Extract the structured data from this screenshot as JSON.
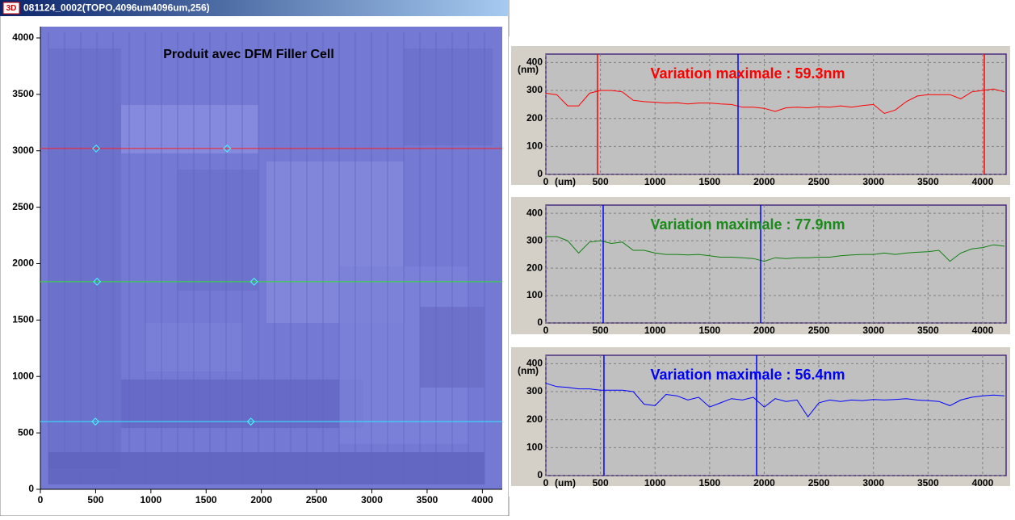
{
  "window_icon": "3D",
  "window_title": "081124_0002(TOPO,4096um4096um,256)",
  "chart_data": [
    {
      "type": "image",
      "title": "Produit avec DFM Filler Cell",
      "xlim": [
        0,
        4180
      ],
      "ylim": [
        0,
        4100
      ],
      "xticks": [
        0,
        500,
        1000,
        1500,
        2000,
        2500,
        3000,
        3500,
        4000
      ],
      "yticks": [
        0,
        500,
        1000,
        1500,
        2000,
        2500,
        3000,
        3500,
        4000
      ],
      "cuts": [
        {
          "color": "#ff2020",
          "value": 3020,
          "markers": [
            505,
            1690
          ]
        },
        {
          "color": "#30e030",
          "value": 1840,
          "markers": [
            513,
            1934
          ]
        },
        {
          "color": "#30e8ff",
          "value": 600,
          "markers": [
            498,
            1905
          ]
        }
      ]
    },
    {
      "type": "line",
      "annotation": "Variation maximale : 59.3nm",
      "annotation_color": "#ff0000",
      "y_unit": "(nm)",
      "x_unit": "(um)",
      "grid": true,
      "xlim": [
        0,
        4215
      ],
      "ylim": [
        0,
        430
      ],
      "xticks": [
        0,
        500,
        1000,
        1500,
        2000,
        2500,
        3000,
        3500,
        4000
      ],
      "yticks": [
        0,
        100,
        200,
        300,
        400
      ],
      "cursors": [
        {
          "value": 473,
          "color": "#ff0000"
        },
        {
          "value": 1760,
          "color": "#0000ff"
        },
        {
          "value": 4015,
          "color": "#ff0000"
        }
      ],
      "series": [
        {
          "color": "#ff0000",
          "x": [
            0,
            100,
            200,
            300,
            400,
            500,
            600,
            700,
            800,
            900,
            1000,
            1100,
            1200,
            1300,
            1400,
            1500,
            1600,
            1700,
            1800,
            1900,
            2000,
            2100,
            2200,
            2300,
            2400,
            2500,
            2600,
            2700,
            2800,
            2900,
            3000,
            3100,
            3200,
            3300,
            3400,
            3500,
            3600,
            3700,
            3800,
            3900,
            4000,
            4100,
            4200
          ],
          "values": [
            290,
            285,
            245,
            245,
            290,
            300,
            300,
            295,
            265,
            260,
            258,
            255,
            256,
            252,
            255,
            255,
            252,
            250,
            240,
            240,
            236,
            225,
            238,
            240,
            238,
            242,
            240,
            245,
            240,
            246,
            250,
            218,
            230,
            260,
            280,
            285,
            285,
            285,
            270,
            295,
            300,
            305,
            295
          ]
        }
      ]
    },
    {
      "type": "line",
      "annotation": "Variation maximale : 77.9nm",
      "annotation_color": "#1a8a1a",
      "grid": true,
      "xlim": [
        0,
        4215
      ],
      "ylim": [
        0,
        430
      ],
      "xticks": [
        0,
        500,
        1000,
        1500,
        2000,
        2500,
        3000,
        3500,
        4000
      ],
      "yticks": [
        0,
        100,
        200,
        300,
        400
      ],
      "cursors": [
        {
          "value": 525,
          "color": "#0000ff"
        },
        {
          "value": 1967,
          "color": "#0000ff"
        }
      ],
      "series": [
        {
          "color": "#108010",
          "x": [
            0,
            100,
            200,
            300,
            400,
            500,
            600,
            700,
            800,
            900,
            1000,
            1100,
            1200,
            1300,
            1400,
            1500,
            1600,
            1700,
            1800,
            1900,
            2000,
            2100,
            2200,
            2300,
            2400,
            2500,
            2600,
            2700,
            2800,
            2900,
            3000,
            3100,
            3200,
            3300,
            3400,
            3500,
            3600,
            3700,
            3800,
            3900,
            4000,
            4100,
            4200
          ],
          "values": [
            315,
            315,
            300,
            255,
            295,
            300,
            290,
            295,
            265,
            265,
            255,
            250,
            250,
            248,
            250,
            245,
            240,
            240,
            238,
            235,
            225,
            238,
            235,
            238,
            238,
            240,
            240,
            245,
            248,
            250,
            250,
            255,
            250,
            255,
            258,
            260,
            265,
            225,
            255,
            270,
            275,
            285,
            280
          ]
        }
      ]
    },
    {
      "type": "line",
      "annotation": "Variation maximale : 56.4nm",
      "annotation_color": "#0000ff",
      "y_unit": "(nm)",
      "x_unit": "(um)",
      "grid": true,
      "xlim": [
        0,
        4215
      ],
      "ylim": [
        0,
        430
      ],
      "xticks": [
        0,
        500,
        1000,
        1500,
        2000,
        2500,
        3000,
        3500,
        4000
      ],
      "yticks": [
        0,
        100,
        200,
        300,
        400
      ],
      "cursors": [
        {
          "value": 532,
          "color": "#0000ff"
        },
        {
          "value": 1930,
          "color": "#0000ff"
        }
      ],
      "series": [
        {
          "color": "#0000ff",
          "x": [
            0,
            100,
            200,
            300,
            400,
            500,
            600,
            700,
            800,
            900,
            1000,
            1100,
            1200,
            1300,
            1400,
            1500,
            1600,
            1700,
            1800,
            1900,
            2000,
            2100,
            2200,
            2300,
            2400,
            2500,
            2600,
            2700,
            2800,
            2900,
            3000,
            3100,
            3200,
            3300,
            3400,
            3500,
            3600,
            3700,
            3800,
            3900,
            4000,
            4100,
            4200
          ],
          "values": [
            330,
            318,
            315,
            310,
            310,
            305,
            305,
            305,
            300,
            255,
            250,
            290,
            285,
            270,
            280,
            245,
            260,
            275,
            270,
            280,
            245,
            275,
            265,
            270,
            210,
            260,
            270,
            265,
            270,
            268,
            272,
            270,
            272,
            275,
            270,
            268,
            265,
            250,
            270,
            280,
            285,
            288,
            285
          ]
        }
      ]
    }
  ]
}
